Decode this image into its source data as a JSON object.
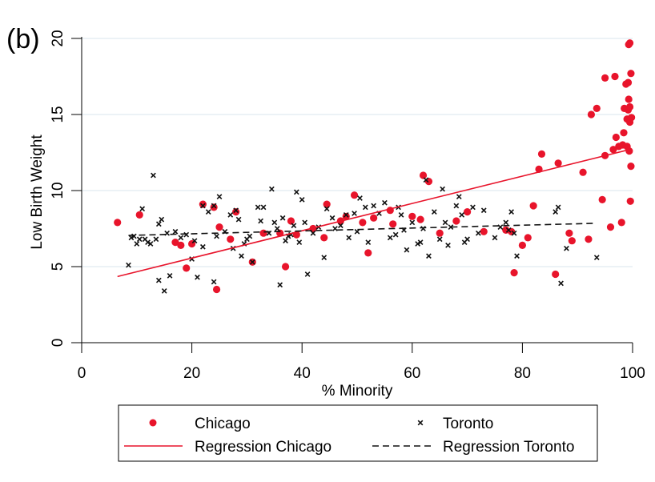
{
  "chart_data": {
    "type": "scatter",
    "panel_label": "(b)",
    "xlabel": "% Minority",
    "ylabel": "Low Birth Weight",
    "xlim": [
      0,
      100
    ],
    "ylim": [
      0,
      20
    ],
    "xticks": [
      "0",
      "20",
      "40",
      "60",
      "80",
      "100"
    ],
    "yticks": [
      "0",
      "5",
      "10",
      "15",
      "20"
    ],
    "grid": "horizontal",
    "legend_placement": "bottom",
    "series": [
      {
        "name": "Chicago",
        "kind": "points",
        "marker": "circle",
        "color": "#e8142b",
        "points": [
          [
            6.5,
            7.9
          ],
          [
            10.5,
            8.4
          ],
          [
            17,
            6.6
          ],
          [
            18,
            6.4
          ],
          [
            19,
            4.9
          ],
          [
            20,
            6.5
          ],
          [
            22,
            9.1
          ],
          [
            24,
            8.9
          ],
          [
            24.5,
            3.5
          ],
          [
            25,
            7.6
          ],
          [
            27,
            6.8
          ],
          [
            28,
            8.6
          ],
          [
            31,
            5.3
          ],
          [
            33,
            7.2
          ],
          [
            36,
            7.2
          ],
          [
            37,
            5.0
          ],
          [
            38,
            8.0
          ],
          [
            39,
            7.1
          ],
          [
            42,
            7.5
          ],
          [
            44,
            6.9
          ],
          [
            44.5,
            9.1
          ],
          [
            47,
            8.0
          ],
          [
            48,
            8.3
          ],
          [
            49.5,
            9.7
          ],
          [
            51,
            7.9
          ],
          [
            52,
            5.9
          ],
          [
            53,
            8.2
          ],
          [
            56,
            8.7
          ],
          [
            56.5,
            7.8
          ],
          [
            60,
            8.3
          ],
          [
            61.5,
            8.1
          ],
          [
            62,
            11.0
          ],
          [
            63,
            10.6
          ],
          [
            65,
            7.2
          ],
          [
            68,
            8.0
          ],
          [
            70,
            8.6
          ],
          [
            73,
            7.3
          ],
          [
            77,
            7.4
          ],
          [
            78,
            7.3
          ],
          [
            78.5,
            4.6
          ],
          [
            80,
            6.4
          ],
          [
            81,
            6.9
          ],
          [
            82,
            9.0
          ],
          [
            83,
            11.4
          ],
          [
            83.5,
            12.4
          ],
          [
            86,
            4.5
          ],
          [
            86.5,
            11.8
          ],
          [
            88.5,
            7.2
          ],
          [
            89,
            6.7
          ],
          [
            91,
            11.2
          ],
          [
            92,
            6.8
          ],
          [
            92.5,
            15.0
          ],
          [
            93.5,
            15.4
          ],
          [
            94.5,
            9.4
          ],
          [
            95,
            12.3
          ],
          [
            95,
            17.4
          ],
          [
            96,
            7.6
          ],
          [
            96.5,
            12.7
          ],
          [
            96.8,
            17.5
          ],
          [
            97,
            13.5
          ],
          [
            97.5,
            12.9
          ],
          [
            98,
            7.9
          ],
          [
            98.2,
            13.0
          ],
          [
            98.4,
            13.8
          ],
          [
            98.5,
            15.4
          ],
          [
            98.8,
            17.0
          ],
          [
            99,
            12.9
          ],
          [
            99,
            14.7
          ],
          [
            99.2,
            15.3
          ],
          [
            99.2,
            17.1
          ],
          [
            99.3,
            16.0
          ],
          [
            99.3,
            19.6
          ],
          [
            99.4,
            12.6
          ],
          [
            99.5,
            14.5
          ],
          [
            99.5,
            15.5
          ],
          [
            99.5,
            19.7
          ],
          [
            99.6,
            9.3
          ],
          [
            99.7,
            11.6
          ],
          [
            99.7,
            17.7
          ],
          [
            99.8,
            14.8
          ]
        ]
      },
      {
        "name": "Toronto",
        "kind": "points",
        "marker": "cross",
        "color": "#111111",
        "points": [
          [
            8.5,
            5.1
          ],
          [
            9,
            6.9
          ],
          [
            9.5,
            7.0
          ],
          [
            10,
            6.5
          ],
          [
            10.5,
            6.8
          ],
          [
            11,
            8.8
          ],
          [
            11.5,
            6.8
          ],
          [
            12,
            6.6
          ],
          [
            12.5,
            6.5
          ],
          [
            13,
            11.0
          ],
          [
            13.5,
            6.8
          ],
          [
            14,
            4.1
          ],
          [
            14,
            7.8
          ],
          [
            14.5,
            8.1
          ],
          [
            15,
            3.4
          ],
          [
            15.5,
            7.2
          ],
          [
            16,
            4.4
          ],
          [
            17,
            7.3
          ],
          [
            18,
            6.9
          ],
          [
            19,
            7.1
          ],
          [
            20,
            5.5
          ],
          [
            20.5,
            6.7
          ],
          [
            21,
            4.3
          ],
          [
            22,
            6.3
          ],
          [
            22,
            9.0
          ],
          [
            23,
            8.6
          ],
          [
            24,
            9.0
          ],
          [
            24,
            4.0
          ],
          [
            24.5,
            7.0
          ],
          [
            25,
            9.6
          ],
          [
            26,
            7.3
          ],
          [
            27,
            8.4
          ],
          [
            27.5,
            6.2
          ],
          [
            28,
            8.7
          ],
          [
            28.5,
            8.1
          ],
          [
            29,
            5.7
          ],
          [
            29.5,
            6.5
          ],
          [
            30,
            6.8
          ],
          [
            30.5,
            7.0
          ],
          [
            31,
            5.3
          ],
          [
            32,
            8.9
          ],
          [
            32.5,
            8.0
          ],
          [
            33,
            8.9
          ],
          [
            34,
            7.2
          ],
          [
            34.5,
            10.1
          ],
          [
            35,
            7.9
          ],
          [
            35.5,
            7.5
          ],
          [
            36,
            3.8
          ],
          [
            36.5,
            8.2
          ],
          [
            37,
            6.7
          ],
          [
            37.5,
            7.0
          ],
          [
            38,
            7.1
          ],
          [
            38.5,
            7.7
          ],
          [
            39,
            9.9
          ],
          [
            39.5,
            6.6
          ],
          [
            40,
            9.4
          ],
          [
            40.5,
            7.9
          ],
          [
            41,
            4.5
          ],
          [
            42,
            7.2
          ],
          [
            43,
            7.6
          ],
          [
            44,
            5.6
          ],
          [
            44.5,
            8.8
          ],
          [
            45.5,
            8.2
          ],
          [
            46,
            7.5
          ],
          [
            47,
            7.7
          ],
          [
            48,
            8.4
          ],
          [
            48.5,
            6.9
          ],
          [
            49.5,
            8.5
          ],
          [
            50,
            7.3
          ],
          [
            50.5,
            9.5
          ],
          [
            51.5,
            8.9
          ],
          [
            52,
            6.6
          ],
          [
            53,
            9.0
          ],
          [
            54,
            8.5
          ],
          [
            55,
            9.2
          ],
          [
            56,
            6.9
          ],
          [
            57,
            7.1
          ],
          [
            57.5,
            8.9
          ],
          [
            58,
            8.4
          ],
          [
            58.5,
            7.4
          ],
          [
            59,
            6.1
          ],
          [
            60,
            7.9
          ],
          [
            61,
            6.5
          ],
          [
            61.5,
            6.6
          ],
          [
            62,
            7.5
          ],
          [
            62.5,
            10.7
          ],
          [
            63,
            5.7
          ],
          [
            64,
            8.6
          ],
          [
            65,
            6.8
          ],
          [
            65.5,
            10.1
          ],
          [
            66,
            7.9
          ],
          [
            66.5,
            6.4
          ],
          [
            67,
            7.6
          ],
          [
            68,
            9.0
          ],
          [
            68.5,
            9.6
          ],
          [
            69,
            8.4
          ],
          [
            69.5,
            6.6
          ],
          [
            70,
            6.8
          ],
          [
            71,
            8.9
          ],
          [
            72,
            7.2
          ],
          [
            73,
            8.7
          ],
          [
            75,
            6.9
          ],
          [
            76,
            7.6
          ],
          [
            77,
            7.9
          ],
          [
            77.5,
            7.4
          ],
          [
            78,
            8.6
          ],
          [
            78.5,
            7.2
          ],
          [
            79,
            5.7
          ],
          [
            86,
            8.6
          ],
          [
            86.5,
            8.9
          ],
          [
            87,
            3.9
          ],
          [
            88,
            6.2
          ],
          [
            93.5,
            5.6
          ]
        ]
      },
      {
        "name": "Regression Chicago",
        "kind": "line",
        "style": "solid",
        "color": "#e8142b",
        "points": [
          [
            6.5,
            4.35
          ],
          [
            99.5,
            12.7
          ]
        ]
      },
      {
        "name": "Regression Toronto",
        "kind": "line",
        "style": "dashed",
        "color": "#111111",
        "points": [
          [
            8.5,
            7.05
          ],
          [
            93.5,
            7.85
          ]
        ]
      }
    ]
  }
}
